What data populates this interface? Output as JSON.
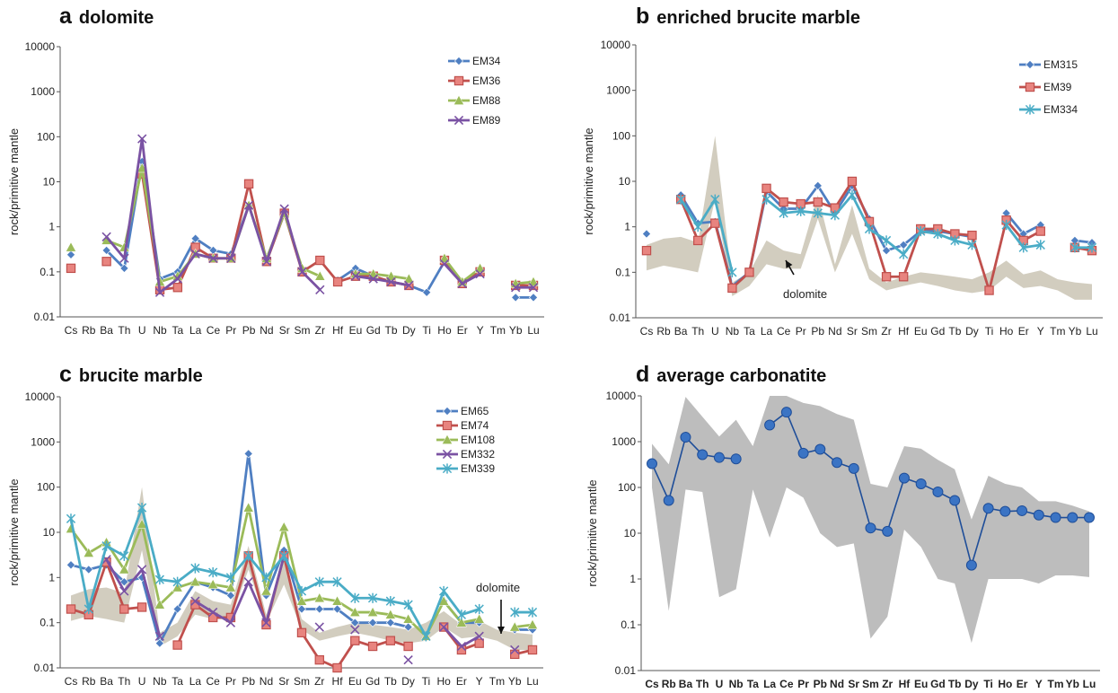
{
  "categories": [
    "Cs",
    "Rb",
    "Ba",
    "Th",
    "U",
    "Nb",
    "Ta",
    "La",
    "Ce",
    "Pr",
    "Pb",
    "Nd",
    "Sr",
    "Sm",
    "Zr",
    "Hf",
    "Eu",
    "Gd",
    "Tb",
    "Dy",
    "Ti",
    "Ho",
    "Er",
    "Y",
    "Tm",
    "Yb",
    "Lu"
  ],
  "yTicks": [
    "0.01",
    "0.1",
    "1",
    "10",
    "100",
    "1000",
    "10000"
  ],
  "panels": [
    {
      "letter": "a",
      "title": "dolomite"
    },
    {
      "letter": "b",
      "title": "enriched brucite marble"
    },
    {
      "letter": "c",
      "title": "brucite marble"
    },
    {
      "letter": "d",
      "title": "average carbonatite"
    }
  ],
  "chart_data": [
    {
      "type": "line",
      "title": "a dolomite",
      "ylabel": "rock/primitive mantle",
      "yscale": "log",
      "ylim": [
        0.01,
        10000
      ],
      "legend_position": "top-right",
      "categories": [
        "Cs",
        "Rb",
        "Ba",
        "Th",
        "U",
        "Nb",
        "Ta",
        "La",
        "Ce",
        "Pr",
        "Pb",
        "Nd",
        "Sr",
        "Sm",
        "Zr",
        "Hf",
        "Eu",
        "Gd",
        "Tb",
        "Dy",
        "Ti",
        "Ho",
        "Er",
        "Y",
        "Tm",
        "Yb",
        "Lu"
      ],
      "series": [
        {
          "name": "EM34",
          "color": "#4f7fc2",
          "marker": "diamond",
          "values": [
            0.24,
            null,
            0.3,
            0.12,
            28,
            0.07,
            0.1,
            0.55,
            0.3,
            0.25,
            3,
            0.18,
            2,
            0.11,
            null,
            0.065,
            0.12,
            0.08,
            0.06,
            0.05,
            0.035,
            0.17,
            0.06,
            0.1,
            null,
            0.027,
            0.027
          ]
        },
        {
          "name": "EM36",
          "color": "#c0504d",
          "marker": "square",
          "values": [
            0.12,
            null,
            0.17,
            null,
            15,
            0.04,
            0.045,
            0.35,
            0.2,
            0.2,
            9,
            0.17,
            2,
            0.1,
            0.18,
            0.06,
            0.08,
            0.08,
            0.06,
            0.05,
            null,
            0.18,
            0.055,
            0.1,
            null,
            0.05,
            0.05
          ]
        },
        {
          "name": "EM88",
          "color": "#9bbb59",
          "marker": "triangle",
          "values": [
            0.35,
            null,
            0.5,
            0.35,
            20,
            0.06,
            0.08,
            0.25,
            0.2,
            0.2,
            3,
            0.2,
            2,
            0.12,
            0.08,
            null,
            0.09,
            0.09,
            0.08,
            0.07,
            null,
            0.2,
            0.06,
            0.12,
            null,
            0.055,
            0.06
          ]
        },
        {
          "name": "EM89",
          "color": "#7a52a3",
          "marker": "x",
          "values": [
            null,
            null,
            0.6,
            0.2,
            90,
            0.035,
            0.07,
            0.25,
            0.2,
            0.2,
            3,
            0.17,
            2.5,
            0.1,
            0.04,
            null,
            0.08,
            0.07,
            0.06,
            0.05,
            null,
            0.15,
            0.055,
            0.09,
            null,
            0.045,
            0.045
          ]
        }
      ]
    },
    {
      "type": "line",
      "title": "b enriched brucite marble",
      "ylabel": "rock/primitive mantle",
      "yscale": "log",
      "ylim": [
        0.01,
        10000
      ],
      "legend_position": "top-right",
      "categories": [
        "Cs",
        "Rb",
        "Ba",
        "Th",
        "U",
        "Nb",
        "Ta",
        "La",
        "Ce",
        "Pr",
        "Pb",
        "Nd",
        "Sr",
        "Sm",
        "Zr",
        "Hf",
        "Eu",
        "Gd",
        "Tb",
        "Dy",
        "Ti",
        "Ho",
        "Er",
        "Y",
        "Tm",
        "Yb",
        "Lu"
      ],
      "annotation": "dolomite",
      "series": [
        {
          "name": "EM315",
          "color": "#4f7fc2",
          "marker": "diamond",
          "values": [
            0.7,
            null,
            5,
            1.2,
            1.3,
            0.05,
            0.1,
            6,
            2.5,
            2.5,
            8,
            2,
            8,
            1.5,
            0.3,
            0.4,
            0.8,
            0.8,
            0.7,
            0.6,
            null,
            2,
            0.7,
            1.1,
            null,
            0.5,
            0.45
          ]
        },
        {
          "name": "EM39",
          "color": "#c0504d",
          "marker": "square",
          "values": [
            0.3,
            null,
            4,
            0.5,
            1.2,
            0.045,
            0.1,
            7,
            3.5,
            3.2,
            3.5,
            2.6,
            10,
            1.3,
            0.08,
            0.08,
            0.9,
            0.9,
            0.7,
            0.65,
            0.04,
            1.4,
            0.5,
            0.8,
            null,
            0.35,
            0.3
          ]
        },
        {
          "name": "EM334",
          "color": "#4aacc6",
          "marker": "star",
          "values": [
            null,
            null,
            4,
            1,
            4,
            0.1,
            null,
            4,
            2,
            2.2,
            2,
            1.8,
            5,
            0.9,
            0.5,
            0.25,
            0.8,
            0.7,
            0.5,
            0.4,
            null,
            1.1,
            0.35,
            0.4,
            null,
            0.35,
            0.35
          ]
        }
      ],
      "band": {
        "upper": [
          0.4,
          0.55,
          0.6,
          0.45,
          100,
          0.06,
          0.1,
          0.5,
          0.3,
          0.25,
          5,
          0.15,
          3,
          0.12,
          0.06,
          0.08,
          0.1,
          0.09,
          0.08,
          0.07,
          0.1,
          0.18,
          0.09,
          0.11,
          0.07,
          0.06,
          0.055
        ],
        "lower": [
          0.11,
          0.14,
          0.12,
          0.1,
          4,
          0.03,
          0.05,
          0.15,
          0.12,
          0.12,
          1.5,
          0.1,
          0.7,
          0.07,
          0.04,
          0.05,
          0.06,
          0.05,
          0.04,
          0.035,
          0.04,
          0.08,
          0.045,
          0.05,
          0.04,
          0.025,
          0.025
        ]
      }
    },
    {
      "type": "line",
      "title": "c brucite marble",
      "ylabel": "rock/primitive mantle",
      "yscale": "log",
      "ylim": [
        0.01,
        10000
      ],
      "legend_position": "top-right",
      "categories": [
        "Cs",
        "Rb",
        "Ba",
        "Th",
        "U",
        "Nb",
        "Ta",
        "La",
        "Ce",
        "Pr",
        "Pb",
        "Nd",
        "Sr",
        "Sm",
        "Zr",
        "Hf",
        "Eu",
        "Gd",
        "Tb",
        "Dy",
        "Ti",
        "Ho",
        "Er",
        "Y",
        "Tm",
        "Yb",
        "Lu"
      ],
      "annotation": "dolomite",
      "series": [
        {
          "name": "EM65",
          "color": "#4f7fc2",
          "marker": "diamond",
          "values": [
            1.9,
            1.5,
            1.9,
            0.8,
            1,
            0.035,
            0.2,
            0.8,
            0.6,
            0.4,
            550,
            0.4,
            4,
            0.2,
            0.2,
            0.2,
            0.1,
            0.1,
            0.1,
            0.08,
            null,
            0.3,
            0.1,
            0.1,
            null,
            0.07,
            0.07
          ]
        },
        {
          "name": "EM74",
          "color": "#c0504d",
          "marker": "square",
          "values": [
            0.2,
            0.15,
            2.2,
            0.2,
            0.22,
            null,
            0.032,
            0.25,
            0.13,
            0.13,
            3,
            0.09,
            3,
            0.06,
            0.015,
            0.01,
            0.04,
            0.03,
            0.04,
            0.03,
            null,
            0.08,
            0.025,
            0.035,
            null,
            0.02,
            0.025
          ]
        },
        {
          "name": "EM108",
          "color": "#9bbb59",
          "marker": "triangle",
          "values": [
            12,
            3.5,
            6,
            1.5,
            15,
            0.25,
            0.6,
            0.8,
            0.7,
            0.6,
            35,
            0.5,
            13,
            0.3,
            0.35,
            0.3,
            0.17,
            0.17,
            0.15,
            0.12,
            0.05,
            0.3,
            0.1,
            0.12,
            null,
            0.08,
            0.09
          ]
        },
        {
          "name": "EM332",
          "color": "#7a52a3",
          "marker": "x",
          "values": [
            null,
            null,
            2.5,
            0.5,
            1.5,
            0.05,
            null,
            0.3,
            0.17,
            0.1,
            0.8,
            0.1,
            3,
            null,
            0.08,
            null,
            0.07,
            null,
            null,
            0.015,
            null,
            0.08,
            0.03,
            0.05,
            null,
            0.025,
            null
          ]
        },
        {
          "name": "EM339",
          "color": "#4aacc6",
          "marker": "star",
          "values": [
            20,
            0.2,
            5,
            3,
            35,
            0.9,
            0.8,
            1.6,
            1.3,
            1,
            3,
            1,
            3,
            0.5,
            0.8,
            0.8,
            0.35,
            0.35,
            0.3,
            0.25,
            0.05,
            0.5,
            0.15,
            0.2,
            null,
            0.17,
            0.17
          ]
        }
      ],
      "band": {
        "upper": [
          0.4,
          0.55,
          0.6,
          0.45,
          100,
          0.06,
          0.1,
          0.5,
          0.3,
          0.25,
          5,
          0.15,
          3,
          0.12,
          0.06,
          0.08,
          0.1,
          0.09,
          0.08,
          0.07,
          0.1,
          0.18,
          0.09,
          0.11,
          0.07,
          0.06,
          0.055
        ],
        "lower": [
          0.11,
          0.14,
          0.12,
          0.1,
          4,
          0.03,
          0.05,
          0.15,
          0.12,
          0.12,
          1.5,
          0.1,
          0.7,
          0.07,
          0.04,
          0.05,
          0.06,
          0.05,
          0.04,
          0.035,
          0.04,
          0.08,
          0.045,
          0.05,
          0.04,
          0.025,
          0.025
        ]
      }
    },
    {
      "type": "line",
      "title": "d average carbonatite",
      "ylabel": "rock/primitive mantle",
      "yscale": "log",
      "ylim": [
        0.01,
        10000
      ],
      "categories": [
        "Cs",
        "Rb",
        "Ba",
        "Th",
        "U",
        "Nb",
        "Ta",
        "La",
        "Ce",
        "Pr",
        "Pb",
        "Nd",
        "Sr",
        "Sm",
        "Zr",
        "Hf",
        "Eu",
        "Gd",
        "Tb",
        "Dy",
        "Ti",
        "Ho",
        "Er",
        "Y",
        "Tm",
        "Yb",
        "Lu"
      ],
      "series": [
        {
          "name": "",
          "color": "#1f4e99",
          "marker": "circle",
          "values": [
            330,
            52,
            1250,
            520,
            450,
            420,
            null,
            2300,
            4400,
            560,
            680,
            350,
            260,
            13,
            11,
            160,
            120,
            80,
            52,
            2,
            35,
            30,
            31,
            25,
            22,
            22,
            22
          ]
        }
      ],
      "band": {
        "upper": [
          900,
          320,
          9500,
          3500,
          1300,
          3000,
          800,
          10000,
          10000,
          7000,
          6000,
          4000,
          3000,
          120,
          100,
          800,
          700,
          400,
          250,
          20,
          180,
          120,
          100,
          50,
          50,
          40,
          30
        ],
        "lower": [
          100,
          0.2,
          90,
          80,
          0.4,
          0.6,
          90,
          8,
          100,
          60,
          10,
          5,
          6,
          0.05,
          0.15,
          12,
          5,
          1,
          0.8,
          0.04,
          1,
          1,
          1,
          0.8,
          1.2,
          1.2,
          1.1
        ]
      }
    }
  ]
}
